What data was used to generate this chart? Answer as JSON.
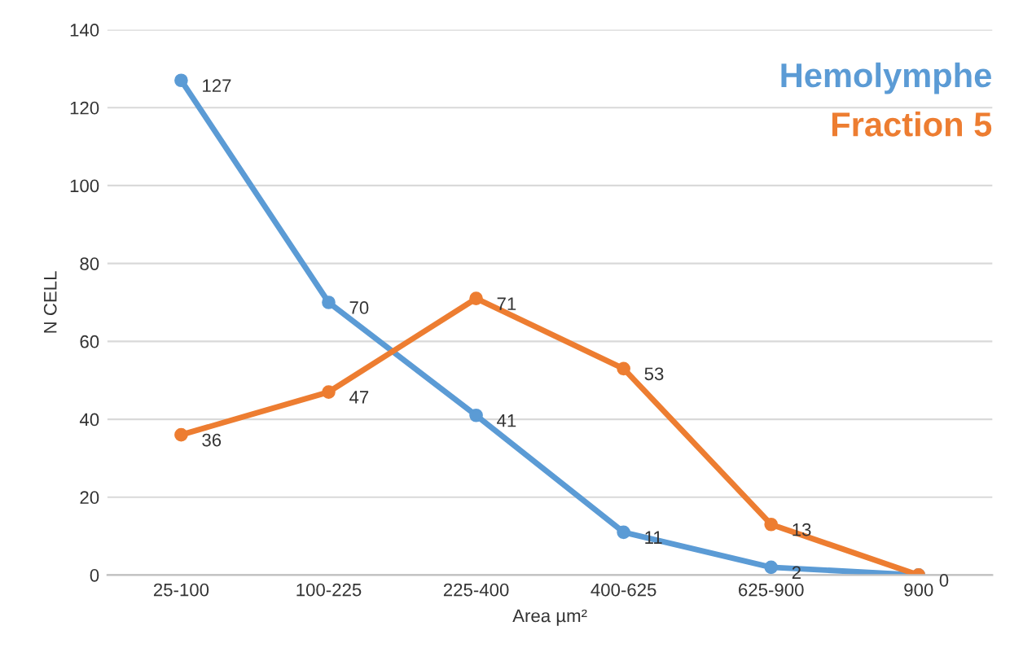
{
  "chart_data": {
    "type": "line",
    "xlabel": "Area µm²",
    "ylabel": "N CELL",
    "categories": [
      "25-100",
      "100-225",
      "225-400",
      "400-625",
      "625-900",
      "900"
    ],
    "series": [
      {
        "name": "Hemolymphe",
        "color": "#5b9bd5",
        "values": [
          127,
          70,
          41,
          11,
          2,
          0
        ],
        "value_labels": [
          "127",
          "70",
          "41",
          "11",
          "2",
          null
        ]
      },
      {
        "name": "Fraction 5",
        "color": "#ed7d31",
        "values": [
          36,
          47,
          71,
          53,
          13,
          0
        ],
        "value_labels": [
          "36",
          "47",
          "71",
          "53",
          "13",
          "0"
        ]
      }
    ],
    "ylim": [
      0,
      140
    ],
    "yticks": [
      0,
      20,
      40,
      60,
      80,
      100,
      120,
      140
    ],
    "grid": "y",
    "marker": "circle",
    "line_style": "solid",
    "legend": "top right"
  }
}
